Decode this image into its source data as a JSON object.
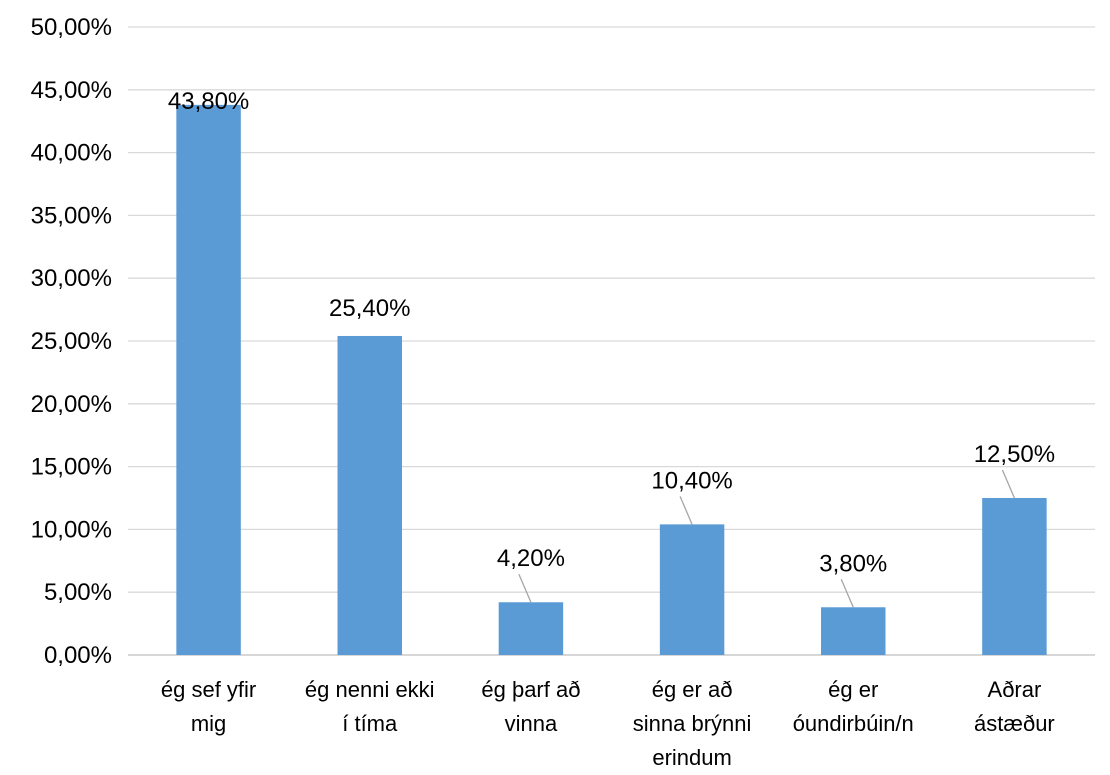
{
  "chart_data": {
    "type": "bar",
    "title": "",
    "title_partial_visible": "",
    "xlabel": "",
    "ylabel": "",
    "categories": [
      [
        "ég sef yfir",
        "mig"
      ],
      [
        "ég nenni ekki",
        "í tíma"
      ],
      [
        "ég þarf að",
        "vinna"
      ],
      [
        "ég er að",
        "sinna brýnni",
        "erindum"
      ],
      [
        "ég er",
        "óundirbúin/n"
      ],
      [
        "Aðrar",
        "ástæður"
      ]
    ],
    "values": [
      43.8,
      25.4,
      4.2,
      10.4,
      3.8,
      12.5
    ],
    "data_labels": [
      "43,80%",
      "25,40%",
      "4,20%",
      "10,40%",
      "3,80%",
      "12,50%"
    ],
    "ylim": [
      0,
      50
    ],
    "yticks": [
      0,
      5,
      10,
      15,
      20,
      25,
      30,
      35,
      40,
      45,
      50
    ],
    "ytick_labels": [
      "0,00%",
      "5,00%",
      "10,00%",
      "15,00%",
      "20,00%",
      "25,00%",
      "30,00%",
      "35,00%",
      "40,00%",
      "45,00%",
      "50,00%"
    ],
    "grid": true,
    "legend": "none",
    "bar_color": "#5B9BD5",
    "gridline_color": "#D9D9D9",
    "leader_line_color": "#A6A6A6"
  }
}
